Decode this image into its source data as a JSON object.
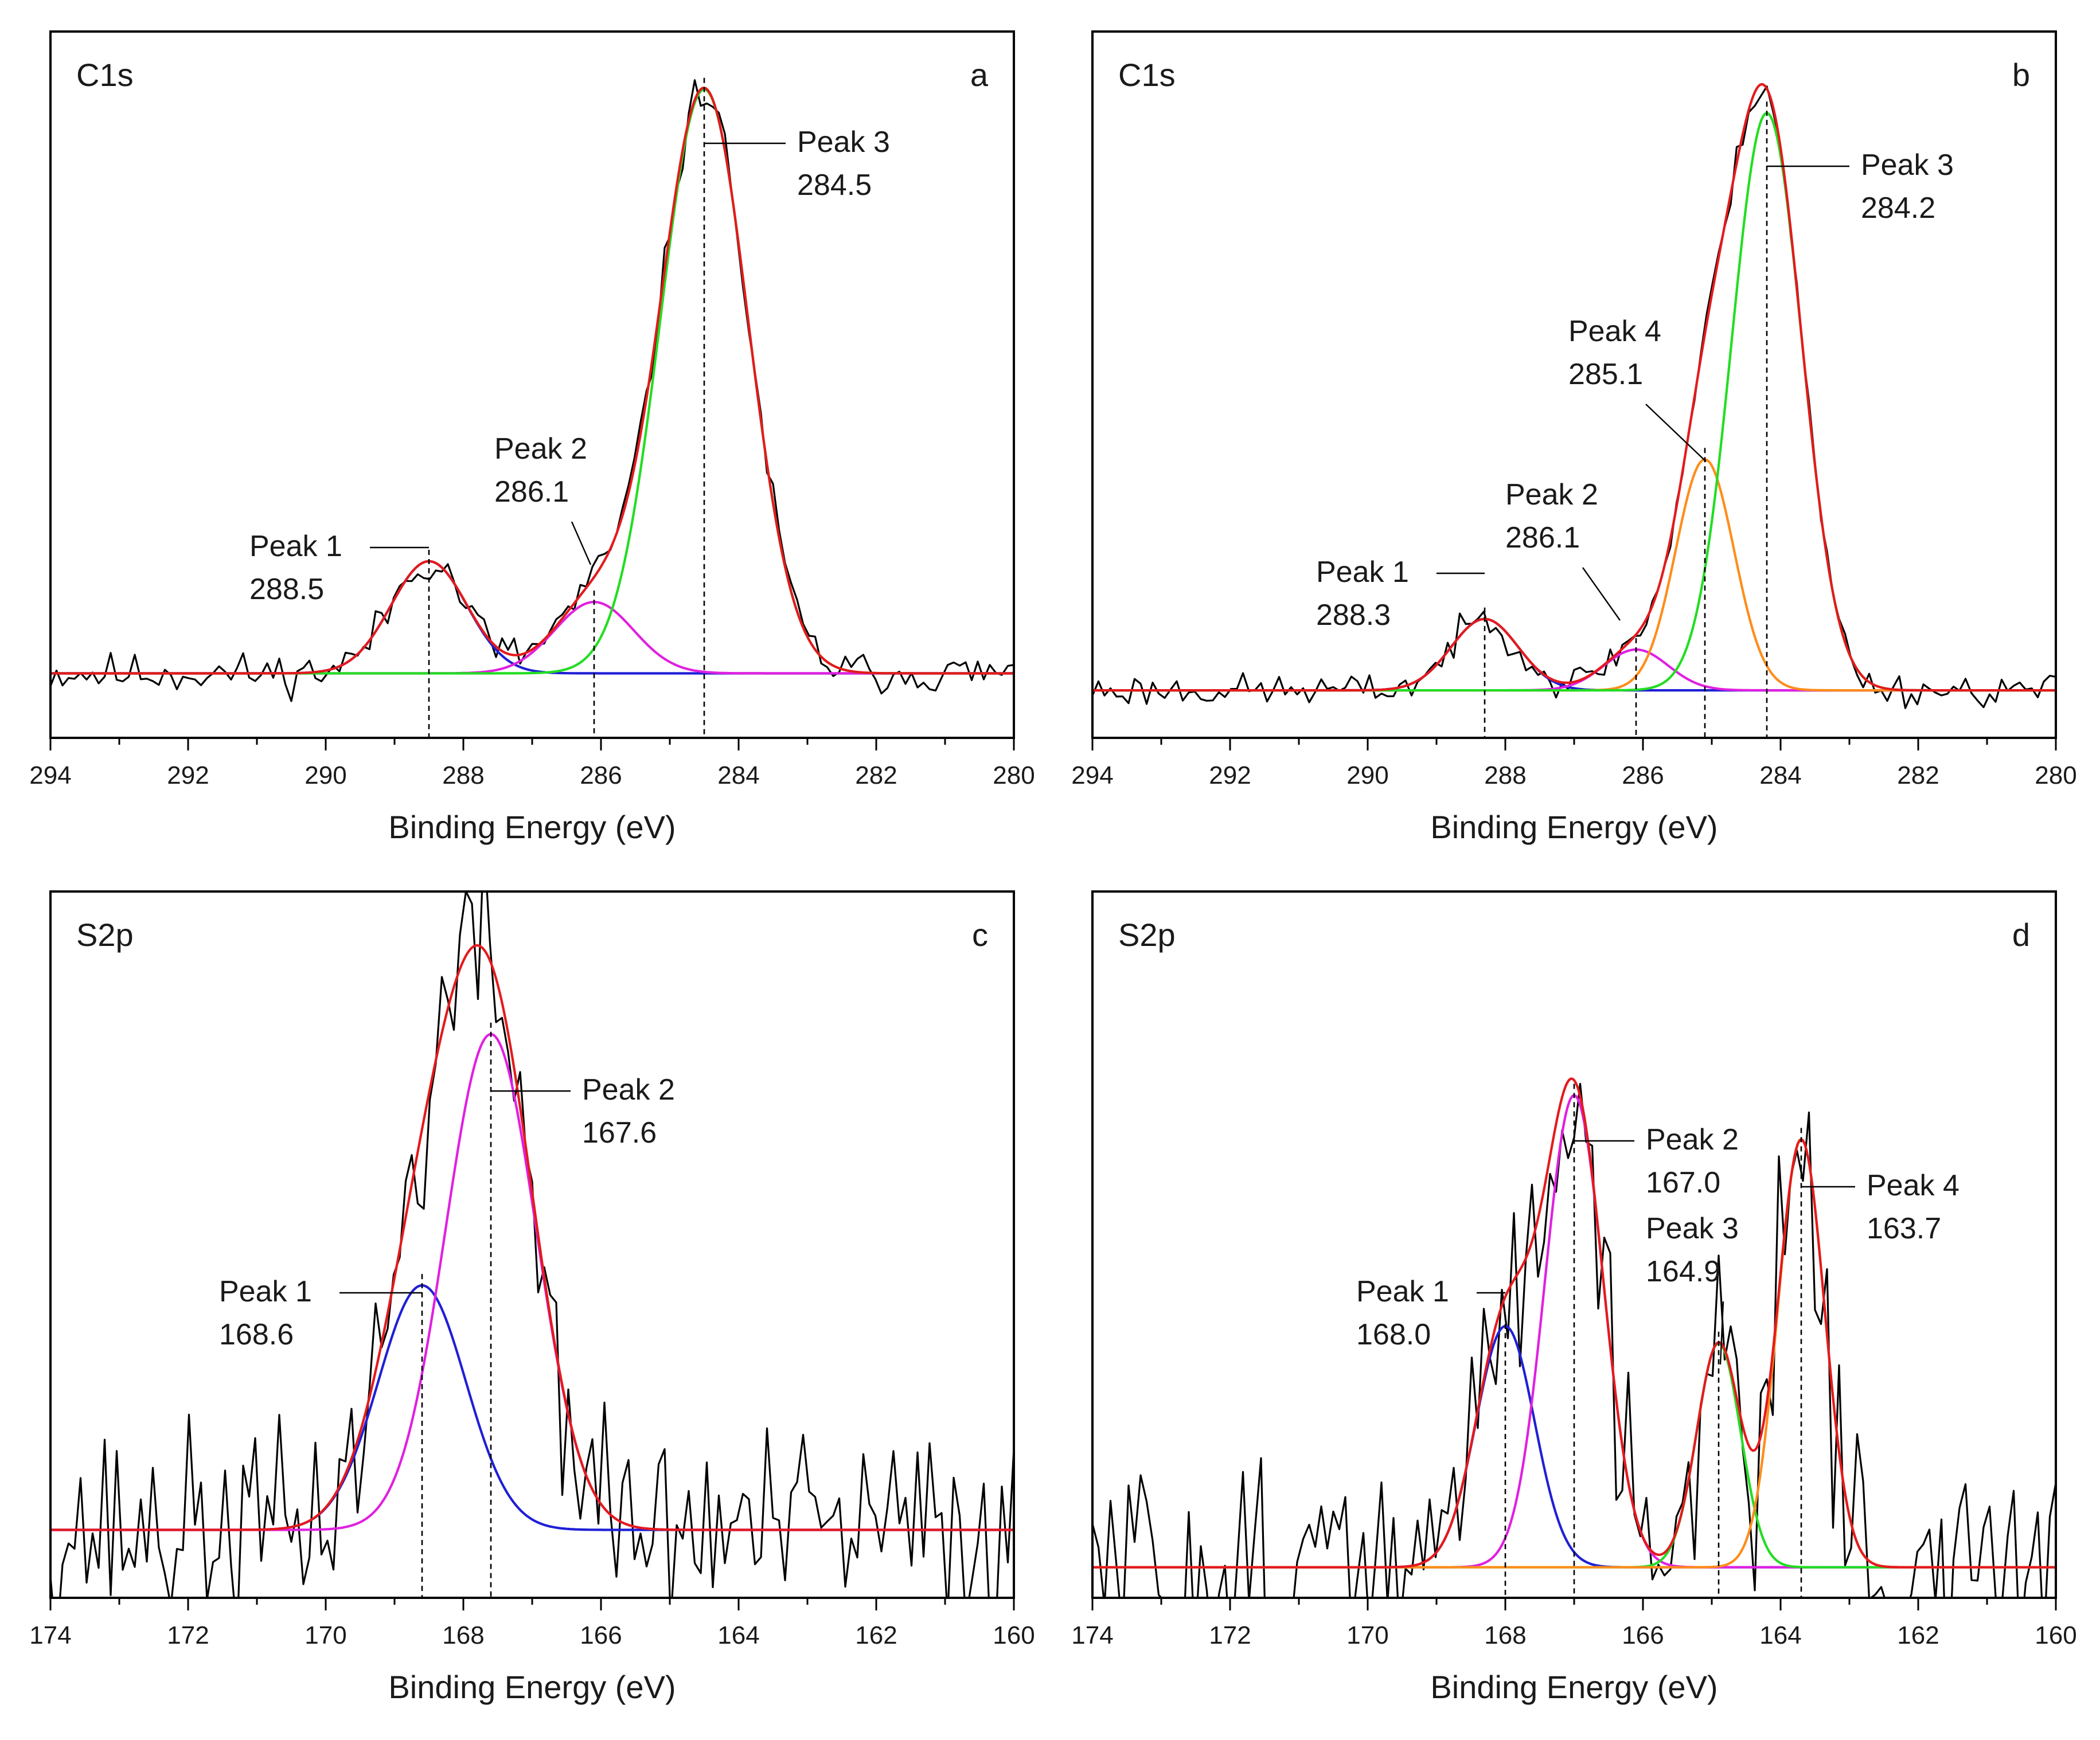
{
  "chart_data": [
    {
      "type": "line",
      "panel": "a",
      "element": "C1s",
      "xlabel": "Binding Energy (eV)",
      "xlim": [
        294,
        280
      ],
      "x_ticks": [
        "294",
        "292",
        "290",
        "288",
        "286",
        "284",
        "282",
        "280"
      ],
      "background": 0.95,
      "ylim": [
        0,
        10.4
      ],
      "peaks": [
        {
          "name": "Peak 1",
          "label": "288.5",
          "center": 288.5,
          "height": 1.65,
          "fwhm": 1.3,
          "color": "#1f1fd6"
        },
        {
          "name": "Peak 2",
          "label": "286.1",
          "center": 286.1,
          "height": 1.05,
          "fwhm": 1.35,
          "color": "#e020e0"
        },
        {
          "name": "Peak 3",
          "label": "284.5",
          "center": 284.5,
          "height": 8.6,
          "fwhm": 1.5,
          "color": "#22dd22"
        }
      ],
      "raw": {
        "color": "#000000",
        "noise": 0.15,
        "seed": 11
      },
      "envelope_color": "#e41a1c"
    },
    {
      "type": "line",
      "panel": "b",
      "element": "C1s",
      "xlabel": "Binding Energy (eV)",
      "xlim": [
        294,
        280
      ],
      "x_ticks": [
        "294",
        "292",
        "290",
        "288",
        "286",
        "284",
        "282",
        "280"
      ],
      "background": 0.7,
      "ylim": [
        0,
        10.4
      ],
      "peaks": [
        {
          "name": "Peak 1",
          "label": "288.3",
          "center": 288.3,
          "height": 1.05,
          "fwhm": 1.15,
          "color": "#1f1fd6"
        },
        {
          "name": "Peak 2",
          "label": "286.1",
          "center": 286.1,
          "height": 0.6,
          "fwhm": 1.1,
          "color": "#e020e0"
        },
        {
          "name": "Peak 4",
          "label": "285.1",
          "center": 285.1,
          "height": 3.4,
          "fwhm": 1.0,
          "color": "#ff8c1a"
        },
        {
          "name": "Peak 3",
          "label": "284.2",
          "center": 284.2,
          "height": 8.5,
          "fwhm": 1.2,
          "color": "#22dd22"
        }
      ],
      "raw": {
        "color": "#000000",
        "noise": 0.12,
        "seed": 23
      },
      "envelope_color": "#e41a1c"
    },
    {
      "type": "line",
      "panel": "c",
      "element": "S2p",
      "xlabel": "Binding Energy (eV)",
      "xlim": [
        174,
        160
      ],
      "x_ticks": [
        "174",
        "172",
        "170",
        "168",
        "166",
        "164",
        "162",
        "160"
      ],
      "background": 1.0,
      "ylim": [
        0,
        10.4
      ],
      "peaks": [
        {
          "name": "Peak 1",
          "label": "168.6",
          "center": 168.6,
          "height": 3.6,
          "fwhm": 1.5,
          "color": "#1f1fd6"
        },
        {
          "name": "Peak 2",
          "label": "167.6",
          "center": 167.6,
          "height": 7.3,
          "fwhm": 1.55,
          "color": "#e020e0"
        }
      ],
      "raw": {
        "color": "#000000",
        "noise": 0.75,
        "seed": 37
      },
      "envelope_color": "#e41a1c"
    },
    {
      "type": "line",
      "panel": "d",
      "element": "S2p",
      "xlabel": "Binding Energy (eV)",
      "xlim": [
        174,
        160
      ],
      "x_ticks": [
        "174",
        "172",
        "170",
        "168",
        "166",
        "164",
        "162",
        "160"
      ],
      "background": 0.45,
      "ylim": [
        0,
        10.4
      ],
      "peaks": [
        {
          "name": "Peak 1",
          "label": "168.0",
          "center": 168.0,
          "height": 3.55,
          "fwhm": 1.0,
          "color": "#1f1fd6"
        },
        {
          "name": "Peak 2",
          "label": "167.0",
          "center": 167.0,
          "height": 6.95,
          "fwhm": 1.0,
          "color": "#e020e0"
        },
        {
          "name": "Peak 3",
          "label": "164.9",
          "center": 164.9,
          "height": 3.3,
          "fwhm": 0.75,
          "color": "#22dd22"
        },
        {
          "name": "Peak 4",
          "label": "163.7",
          "center": 163.7,
          "height": 6.3,
          "fwhm": 0.8,
          "color": "#ff8c1a"
        }
      ],
      "raw": {
        "color": "#000000",
        "noise": 0.8,
        "seed": 51
      },
      "envelope_color": "#e41a1c"
    }
  ]
}
